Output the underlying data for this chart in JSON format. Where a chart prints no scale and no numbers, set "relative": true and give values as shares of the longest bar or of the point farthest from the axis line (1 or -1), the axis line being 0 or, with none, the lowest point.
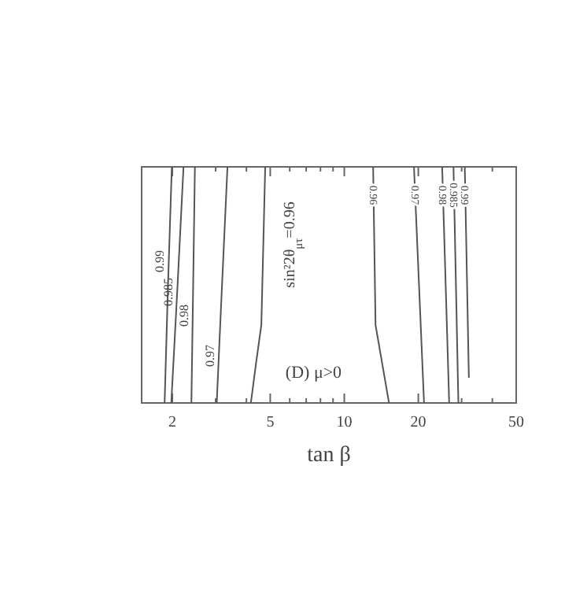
{
  "chart_data": {
    "type": "line",
    "relative": true,
    "log": "x",
    "xlabel": "tan β",
    "xlim": [
      1.5,
      50
    ],
    "xticks": [
      2,
      {
        "value": 3,
        "label": null
      },
      {
        "value": 4,
        "label": null
      },
      5,
      {
        "value": 6,
        "label": null
      },
      {
        "value": 7,
        "label": null
      },
      {
        "value": 8,
        "label": null
      },
      {
        "value": 9,
        "label": null
      },
      10,
      20,
      {
        "value": 30,
        "label": null
      },
      {
        "value": 40,
        "label": null
      },
      50
    ],
    "annotations": [
      "(D) μ>0"
    ],
    "series": [
      {
        "name": "0.99",
        "color": "#555555",
        "x": [
          1.99,
          1.92,
          1.86
        ],
        "values": [
          1,
          0.5,
          0
        ]
      },
      {
        "name": "0.985",
        "color": "#555555",
        "x": [
          2.22,
          2.1,
          1.98
        ],
        "values": [
          1,
          0.5,
          0
        ]
      },
      {
        "name": "0.98",
        "color": "#555555",
        "x": [
          2.47,
          2.43,
          2.39
        ],
        "values": [
          1,
          0.5,
          0
        ]
      },
      {
        "name": "0.97",
        "color": "#555555",
        "x": [
          3.35,
          3.13,
          3.03
        ],
        "values": [
          1,
          0.33,
          0
        ]
      },
      {
        "name": "sin²2θ$_{μτ}$=0.96",
        "color": "#555555",
        "x": [
          4.77,
          4.6,
          4.38,
          4.17
        ],
        "values": [
          1,
          0.33,
          0.17,
          0
        ]
      },
      {
        "name": "0.96",
        "color": "#555555",
        "x": [
          13.1,
          13.4,
          15.2
        ],
        "values": [
          1,
          0.33,
          0
        ]
      },
      {
        "name": "0.97",
        "color": "#555555",
        "x": [
          19.2,
          21.1
        ],
        "values": [
          1,
          0
        ]
      },
      {
        "name": "0.98",
        "color": "#555555",
        "x": [
          25,
          26.7
        ],
        "values": [
          1,
          0
        ]
      },
      {
        "name": "0.985",
        "color": "#555555",
        "x": [
          27.8,
          29.1
        ],
        "values": [
          1,
          0
        ]
      },
      {
        "name": "0.99",
        "color": "#555555",
        "x": [
          30.9,
          32.1
        ],
        "values": [
          1,
          0.107
        ]
      }
    ],
    "line_style": "solid",
    "marker": "none",
    "grid": false
  }
}
